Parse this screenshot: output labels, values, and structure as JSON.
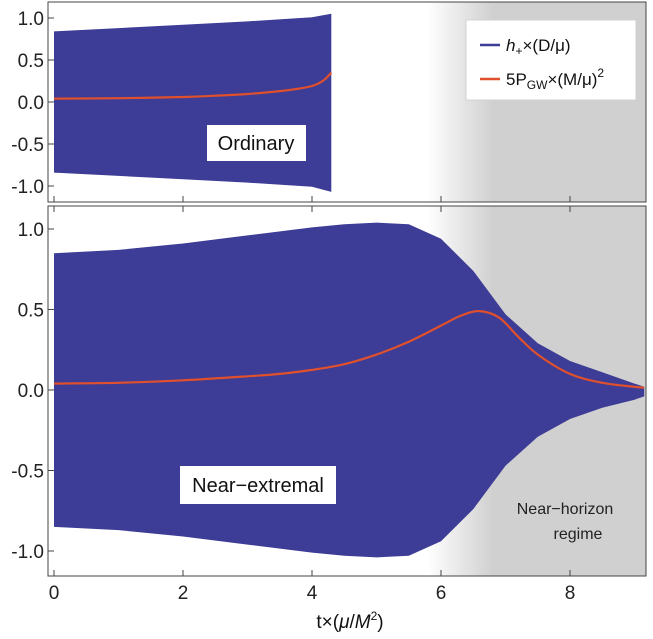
{
  "chart_data": [
    {
      "type": "area",
      "panel": "top",
      "annotation": "Ordinary",
      "x_range": [
        0,
        9.2
      ],
      "ylim": [
        -1.2,
        1.2
      ],
      "yticks": [
        "1.0",
        "0.5",
        "0.0",
        "-0.5",
        "-1.0"
      ],
      "ytick_values": [
        1.0,
        0.5,
        0.0,
        -0.5,
        -1.0
      ],
      "shaded_region": {
        "from": 6.1,
        "to": 9.2,
        "label": ""
      },
      "series": [
        {
          "name": "h+×(D/μ) envelope",
          "style": "filled band",
          "color": "#3d3c96",
          "x": [
            0,
            1,
            2,
            3,
            4,
            4.3
          ],
          "upper": [
            0.84,
            0.88,
            0.92,
            0.96,
            1.01,
            1.05
          ],
          "lower": [
            -0.84,
            -0.88,
            -0.92,
            -0.96,
            -1.01,
            -1.07
          ]
        },
        {
          "name": "5P_GW×(M/μ)^2",
          "style": "line",
          "color": "#e0502c",
          "x": [
            0,
            1,
            2,
            2.5,
            3,
            3.5,
            3.8,
            4.0,
            4.1,
            4.2,
            4.3
          ],
          "y": [
            0.04,
            0.045,
            0.06,
            0.075,
            0.095,
            0.13,
            0.16,
            0.19,
            0.22,
            0.27,
            0.35
          ]
        }
      ]
    },
    {
      "type": "area",
      "panel": "bottom",
      "annotation": "Near−extremal",
      "x_range": [
        0,
        9.2
      ],
      "ylim": [
        -1.2,
        1.2
      ],
      "yticks": [
        "1.0",
        "0.5",
        "0.0",
        "-0.5",
        "-1.0"
      ],
      "ytick_values": [
        1.0,
        0.5,
        0.0,
        -0.5,
        -1.0
      ],
      "xticks": [
        "0",
        "2",
        "4",
        "6",
        "8"
      ],
      "xtick_values": [
        0,
        2,
        4,
        6,
        8
      ],
      "xlabel": "t×(μ/M²)",
      "shaded_region": {
        "from": 6.1,
        "to": 9.2,
        "label": "Near−horizon regime",
        "label_lines": [
          "Near−horizon",
          "regime"
        ]
      },
      "series": [
        {
          "name": "h+×(D/μ) envelope",
          "style": "filled band",
          "color": "#3d3c96",
          "x": [
            0,
            1,
            2,
            3,
            4,
            4.5,
            5,
            5.5,
            6,
            6.5,
            7,
            7.5,
            8,
            8.5,
            9,
            9.15
          ],
          "upper": [
            0.85,
            0.87,
            0.91,
            0.96,
            1.01,
            1.03,
            1.04,
            1.03,
            0.94,
            0.74,
            0.47,
            0.29,
            0.18,
            0.11,
            0.04,
            0.02
          ],
          "lower": [
            -0.85,
            -0.87,
            -0.91,
            -0.96,
            -1.01,
            -1.03,
            -1.04,
            -1.03,
            -0.94,
            -0.74,
            -0.47,
            -0.29,
            -0.18,
            -0.11,
            -0.06,
            -0.04
          ]
        },
        {
          "name": "5P_GW×(M/μ)^2",
          "style": "line",
          "color": "#e0502c",
          "x": [
            0,
            1,
            2,
            3,
            3.5,
            4,
            4.5,
            5,
            5.5,
            6,
            6.3,
            6.6,
            6.9,
            7.2,
            7.5,
            8,
            8.5,
            9,
            9.15
          ],
          "y": [
            0.04,
            0.045,
            0.06,
            0.085,
            0.1,
            0.125,
            0.16,
            0.22,
            0.3,
            0.4,
            0.46,
            0.49,
            0.45,
            0.33,
            0.22,
            0.1,
            0.045,
            0.02,
            0.015
          ]
        }
      ]
    }
  ],
  "legend": {
    "placement": "top-right",
    "entries": [
      {
        "label_base": "h",
        "label_sub": "+",
        "label_rest": "×(D/μ)",
        "color": "#3d3c96"
      },
      {
        "label_base": "5P",
        "label_sub": "GW",
        "label_rest": "×(M/μ)",
        "label_sup": "2",
        "color": "#e0502c"
      }
    ]
  }
}
